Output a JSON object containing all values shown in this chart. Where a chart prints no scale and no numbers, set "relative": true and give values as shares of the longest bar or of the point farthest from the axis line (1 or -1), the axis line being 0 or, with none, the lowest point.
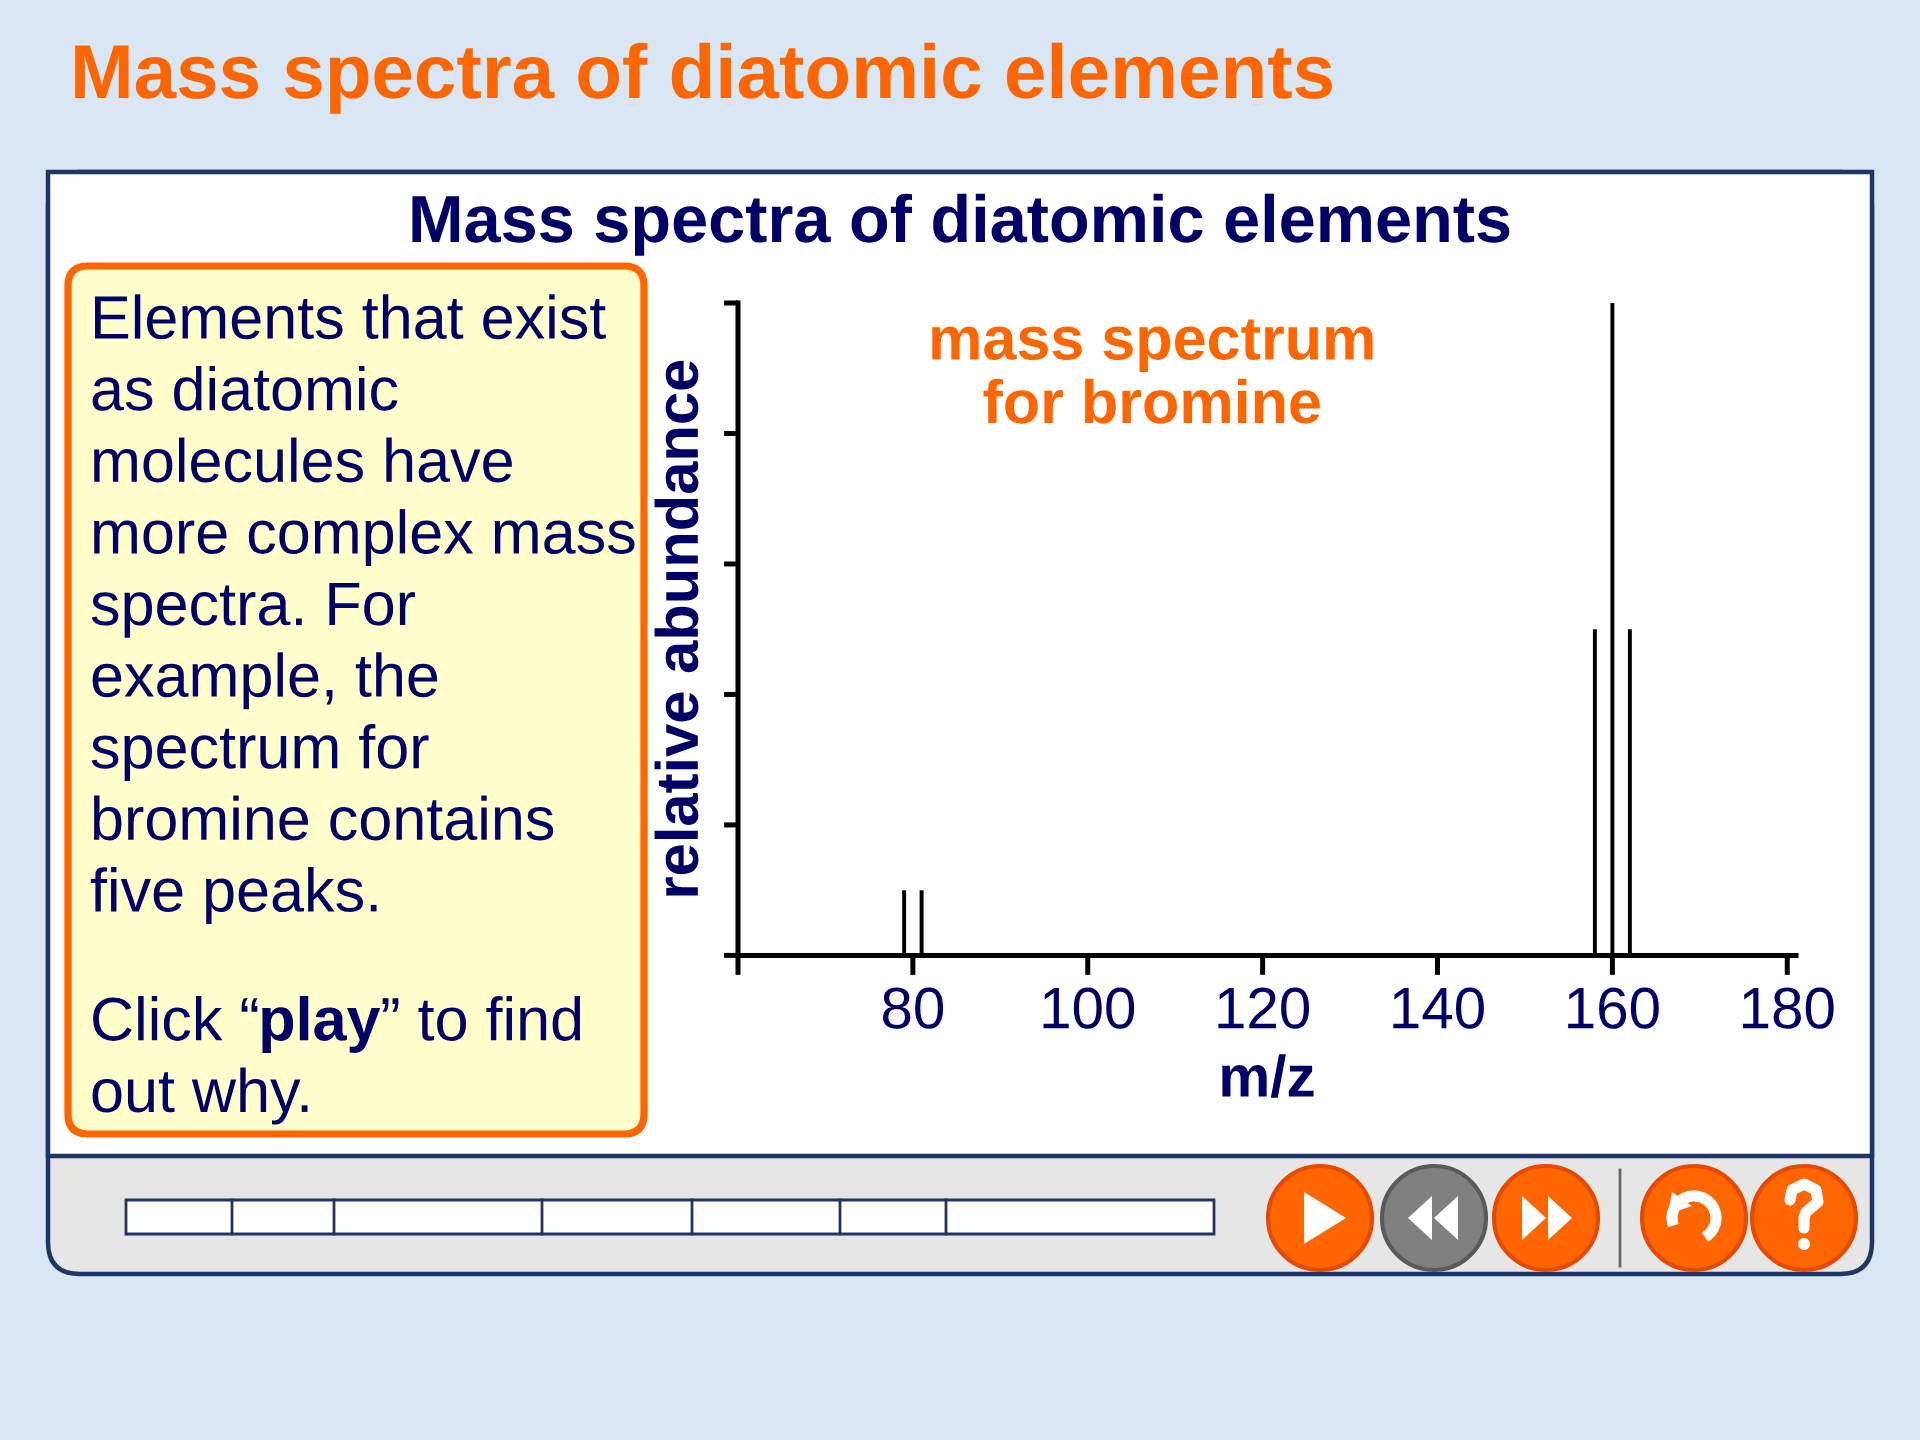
{
  "chart_data": {
    "type": "bar",
    "title": "Mass spectra of diatomic elements",
    "subtitle": "Mass spectra of diatomic elements",
    "xlabel": "m/z",
    "ylabel": "relative abundance",
    "x": [
      79,
      81,
      158,
      160,
      162
    ],
    "values": [
      0.1,
      0.1,
      0.5,
      1,
      0.5
    ],
    "color": "#000000",
    "relative": true,
    "tick_labels": "x",
    "xlim": [
      60,
      181
    ],
    "xticks": [
      {
        "value": 60,
        "label": null
      },
      80,
      100,
      120,
      140,
      160,
      180
    ],
    "annotations": [
      "mass spectrum\nfor bromine",
      "Elements that exist\nas diatomic\nmolecules have\nmore complex mass\nspectra. For\nexample, the\nspectrum for\nbromine contains\nfive peaks.",
      "Click “play” to find\nout why."
    ]
  }
}
